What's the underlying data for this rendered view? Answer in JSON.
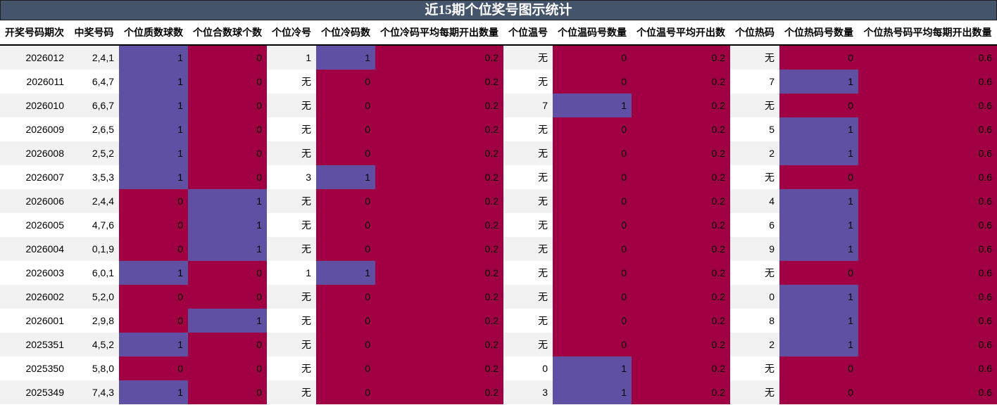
{
  "title": "近15期个位奖号图示统计",
  "colors": {
    "header_bg": "#44546a",
    "high": "#5f50a3",
    "low": "#a00043",
    "stripe": "#f2f2f2"
  },
  "columns": [
    "开奖号码期次",
    "中奖号码",
    "个位质数球数",
    "个位合数球个数",
    "个位冷号",
    "个位冷码数",
    "个位冷码平均每期开出数量",
    "个位温号",
    "个位温码号数量",
    "个位温号平均开出数",
    "个位热码",
    "个位热码号数量",
    "个位热号码平均每期开出数量"
  ],
  "rows": [
    [
      "2026012",
      "2,4,1",
      "1",
      "0",
      "1",
      "1",
      "0.2",
      "无",
      "0",
      "0.2",
      "无",
      "0",
      "0.6"
    ],
    [
      "2026011",
      "6,4,7",
      "1",
      "0",
      "无",
      "0",
      "0.2",
      "无",
      "0",
      "0.2",
      "7",
      "1",
      "0.6"
    ],
    [
      "2026010",
      "6,6,7",
      "1",
      "0",
      "无",
      "0",
      "0.2",
      "7",
      "1",
      "0.2",
      "无",
      "0",
      "0.6"
    ],
    [
      "2026009",
      "2,6,5",
      "1",
      "0",
      "无",
      "0",
      "0.2",
      "无",
      "0",
      "0.2",
      "5",
      "1",
      "0.6"
    ],
    [
      "2026008",
      "2,5,2",
      "1",
      "0",
      "无",
      "0",
      "0.2",
      "无",
      "0",
      "0.2",
      "2",
      "1",
      "0.6"
    ],
    [
      "2026007",
      "3,5,3",
      "1",
      "0",
      "3",
      "1",
      "0.2",
      "无",
      "0",
      "0.2",
      "无",
      "0",
      "0.6"
    ],
    [
      "2026006",
      "2,4,4",
      "0",
      "1",
      "无",
      "0",
      "0.2",
      "无",
      "0",
      "0.2",
      "4",
      "1",
      "0.6"
    ],
    [
      "2026005",
      "4,7,6",
      "0",
      "1",
      "无",
      "0",
      "0.2",
      "无",
      "0",
      "0.2",
      "6",
      "1",
      "0.6"
    ],
    [
      "2026004",
      "0,1,9",
      "0",
      "1",
      "无",
      "0",
      "0.2",
      "无",
      "0",
      "0.2",
      "9",
      "1",
      "0.6"
    ],
    [
      "2026003",
      "6,0,1",
      "1",
      "0",
      "1",
      "1",
      "0.2",
      "无",
      "0",
      "0.2",
      "无",
      "0",
      "0.6"
    ],
    [
      "2026002",
      "5,2,0",
      "0",
      "0",
      "无",
      "0",
      "0.2",
      "无",
      "0",
      "0.2",
      "0",
      "1",
      "0.6"
    ],
    [
      "2026001",
      "2,9,8",
      "0",
      "1",
      "无",
      "0",
      "0.2",
      "无",
      "0",
      "0.2",
      "8",
      "1",
      "0.6"
    ],
    [
      "2025351",
      "4,5,2",
      "1",
      "0",
      "无",
      "0",
      "0.2",
      "无",
      "0",
      "0.2",
      "2",
      "1",
      "0.6"
    ],
    [
      "2025350",
      "5,8,0",
      "0",
      "0",
      "无",
      "0",
      "0.2",
      "0",
      "1",
      "0.2",
      "无",
      "0",
      "0.6"
    ],
    [
      "2025349",
      "7,4,3",
      "1",
      "0",
      "无",
      "0",
      "0.2",
      "3",
      "1",
      "0.2",
      "无",
      "0",
      "0.6"
    ]
  ]
}
